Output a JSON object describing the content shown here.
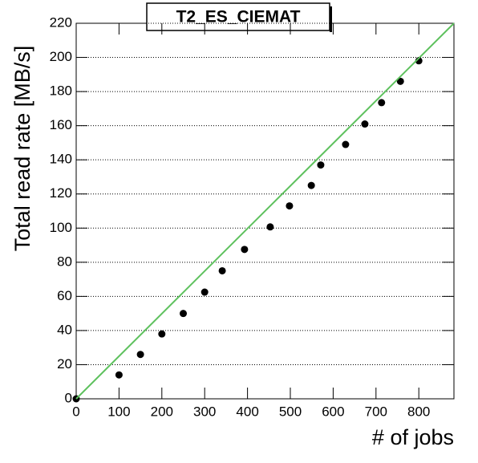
{
  "chart_data": {
    "type": "scatter",
    "title": "T2_ES_CIEMAT",
    "x_label": "# of jobs",
    "y_label": "Total read rate [MB/s]",
    "xlim": [
      0,
      882
    ],
    "ylim": [
      0,
      220
    ],
    "xticks": [
      0,
      100,
      200,
      300,
      400,
      500,
      600,
      700,
      800
    ],
    "yticks": [
      0,
      20,
      40,
      60,
      80,
      100,
      120,
      140,
      160,
      180,
      200,
      220
    ],
    "grid": true,
    "series": [
      {
        "type": "scatter",
        "color": "#000000",
        "x": [
          0,
          100,
          150,
          200,
          250,
          300,
          341,
          393,
          453,
          498,
          549,
          571,
          629,
          674,
          713,
          757,
          800
        ],
        "values": [
          0,
          14,
          26,
          38,
          50,
          62.5,
          75,
          87.5,
          100.7,
          113,
          125,
          137,
          149,
          161,
          173.5,
          186,
          198
        ]
      },
      {
        "type": "line",
        "color": "#5ec15e",
        "x": [
          0,
          882
        ],
        "values": [
          0,
          220
        ]
      }
    ]
  }
}
